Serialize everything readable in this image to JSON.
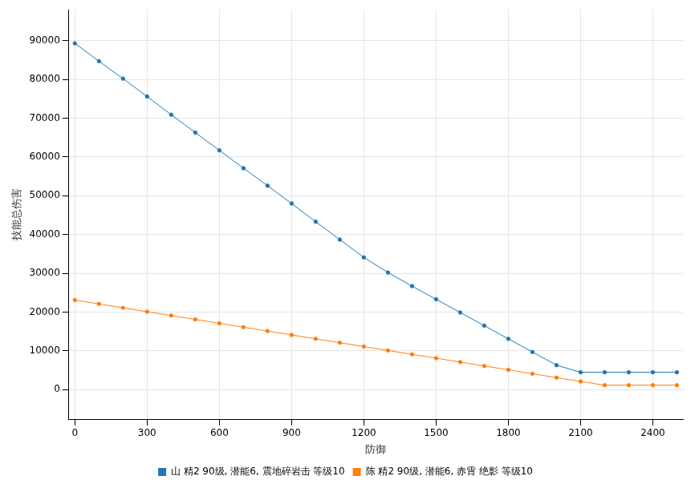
{
  "chart_data": {
    "type": "line",
    "x_label": "防御",
    "y_label": "技能总伤害",
    "x": [
      0,
      100,
      200,
      300,
      400,
      500,
      600,
      700,
      800,
      900,
      1000,
      1100,
      1200,
      1300,
      1400,
      1500,
      1600,
      1700,
      1800,
      1900,
      2000,
      2100,
      2200,
      2300,
      2400,
      2500
    ],
    "series": [
      {
        "name": "山 精2 90级, 潜能6, 震地碎岩击 等级10",
        "color": "#1f77b4",
        "marker": "circle",
        "values": [
          89300,
          84700,
          80200,
          75600,
          70900,
          66300,
          61700,
          57100,
          52600,
          48000,
          43300,
          38700,
          34100,
          30200,
          26700,
          23300,
          19900,
          16500,
          13100,
          9700,
          6300,
          4470,
          4470,
          4470,
          4470,
          4470
        ]
      },
      {
        "name": "陈 精2 90级, 潜能6, 赤霄 绝影 等级10",
        "color": "#ff7f0e",
        "marker": "circle",
        "values": [
          23100,
          22100,
          21100,
          20100,
          19100,
          18100,
          17100,
          16100,
          15100,
          14100,
          13100,
          12100,
          11100,
          10100,
          9100,
          8100,
          7100,
          6100,
          5100,
          4100,
          3100,
          2100,
          1150,
          1150,
          1150,
          1150
        ]
      }
    ],
    "xlim": [
      -25,
      2525
    ],
    "xticks": [
      0,
      300,
      600,
      900,
      1200,
      1500,
      1800,
      2100,
      2400
    ],
    "ylim": [
      -7600,
      98000
    ],
    "yticks": [
      0,
      10000,
      20000,
      30000,
      40000,
      50000,
      60000,
      70000,
      80000,
      90000
    ],
    "grid": true,
    "legend": "bottom"
  }
}
